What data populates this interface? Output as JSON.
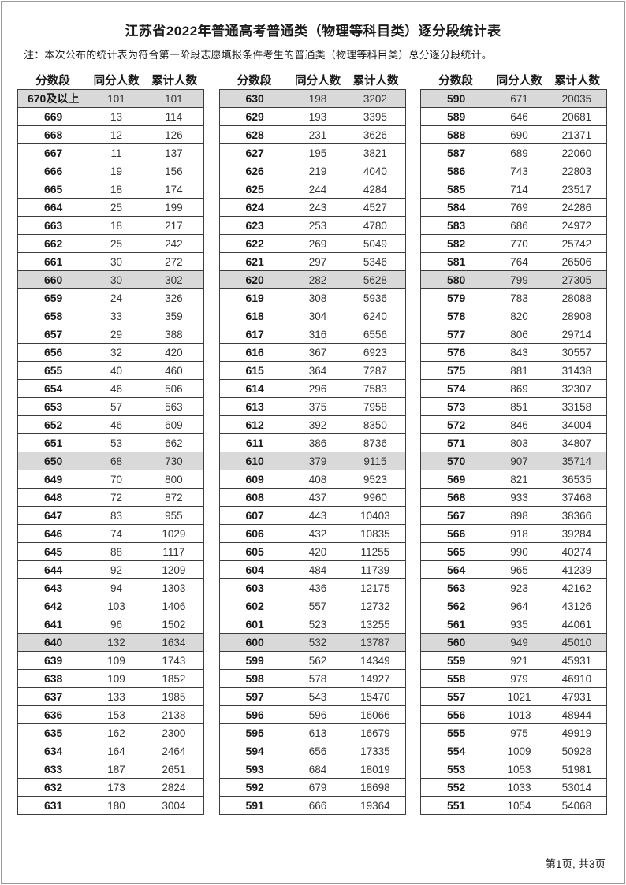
{
  "page": {
    "title": "江苏省2022年普通高考普通类（物理等科目类）逐分段统计表",
    "note": "注：本次公布的统计表为符合第一阶段志愿填报条件考生的普通类（物理等科目类）总分逐分段统计。",
    "footer": "第1页, 共3页"
  },
  "colors": {
    "shaded_row": "#d9d9d9",
    "row_border": "#3d3d3d"
  },
  "tables": {
    "headers": [
      "分数段",
      "同分人数",
      "累计人数"
    ],
    "columns": [
      {
        "rows": [
          [
            "670及以上",
            "101",
            "101"
          ],
          [
            "669",
            "13",
            "114"
          ],
          [
            "668",
            "12",
            "126"
          ],
          [
            "667",
            "11",
            "137"
          ],
          [
            "666",
            "19",
            "156"
          ],
          [
            "665",
            "18",
            "174"
          ],
          [
            "664",
            "25",
            "199"
          ],
          [
            "663",
            "18",
            "217"
          ],
          [
            "662",
            "25",
            "242"
          ],
          [
            "661",
            "30",
            "272"
          ],
          [
            "660",
            "30",
            "302"
          ],
          [
            "659",
            "24",
            "326"
          ],
          [
            "658",
            "33",
            "359"
          ],
          [
            "657",
            "29",
            "388"
          ],
          [
            "656",
            "32",
            "420"
          ],
          [
            "655",
            "40",
            "460"
          ],
          [
            "654",
            "46",
            "506"
          ],
          [
            "653",
            "57",
            "563"
          ],
          [
            "652",
            "46",
            "609"
          ],
          [
            "651",
            "53",
            "662"
          ],
          [
            "650",
            "68",
            "730"
          ],
          [
            "649",
            "70",
            "800"
          ],
          [
            "648",
            "72",
            "872"
          ],
          [
            "647",
            "83",
            "955"
          ],
          [
            "646",
            "74",
            "1029"
          ],
          [
            "645",
            "88",
            "1117"
          ],
          [
            "644",
            "92",
            "1209"
          ],
          [
            "643",
            "94",
            "1303"
          ],
          [
            "642",
            "103",
            "1406"
          ],
          [
            "641",
            "96",
            "1502"
          ],
          [
            "640",
            "132",
            "1634"
          ],
          [
            "639",
            "109",
            "1743"
          ],
          [
            "638",
            "109",
            "1852"
          ],
          [
            "637",
            "133",
            "1985"
          ],
          [
            "636",
            "153",
            "2138"
          ],
          [
            "635",
            "162",
            "2300"
          ],
          [
            "634",
            "164",
            "2464"
          ],
          [
            "633",
            "187",
            "2651"
          ],
          [
            "632",
            "173",
            "2824"
          ],
          [
            "631",
            "180",
            "3004"
          ]
        ]
      },
      {
        "rows": [
          [
            "630",
            "198",
            "3202"
          ],
          [
            "629",
            "193",
            "3395"
          ],
          [
            "628",
            "231",
            "3626"
          ],
          [
            "627",
            "195",
            "3821"
          ],
          [
            "626",
            "219",
            "4040"
          ],
          [
            "625",
            "244",
            "4284"
          ],
          [
            "624",
            "243",
            "4527"
          ],
          [
            "623",
            "253",
            "4780"
          ],
          [
            "622",
            "269",
            "5049"
          ],
          [
            "621",
            "297",
            "5346"
          ],
          [
            "620",
            "282",
            "5628"
          ],
          [
            "619",
            "308",
            "5936"
          ],
          [
            "618",
            "304",
            "6240"
          ],
          [
            "617",
            "316",
            "6556"
          ],
          [
            "616",
            "367",
            "6923"
          ],
          [
            "615",
            "364",
            "7287"
          ],
          [
            "614",
            "296",
            "7583"
          ],
          [
            "613",
            "375",
            "7958"
          ],
          [
            "612",
            "392",
            "8350"
          ],
          [
            "611",
            "386",
            "8736"
          ],
          [
            "610",
            "379",
            "9115"
          ],
          [
            "609",
            "408",
            "9523"
          ],
          [
            "608",
            "437",
            "9960"
          ],
          [
            "607",
            "443",
            "10403"
          ],
          [
            "606",
            "432",
            "10835"
          ],
          [
            "605",
            "420",
            "11255"
          ],
          [
            "604",
            "484",
            "11739"
          ],
          [
            "603",
            "436",
            "12175"
          ],
          [
            "602",
            "557",
            "12732"
          ],
          [
            "601",
            "523",
            "13255"
          ],
          [
            "600",
            "532",
            "13787"
          ],
          [
            "599",
            "562",
            "14349"
          ],
          [
            "598",
            "578",
            "14927"
          ],
          [
            "597",
            "543",
            "15470"
          ],
          [
            "596",
            "596",
            "16066"
          ],
          [
            "595",
            "613",
            "16679"
          ],
          [
            "594",
            "656",
            "17335"
          ],
          [
            "593",
            "684",
            "18019"
          ],
          [
            "592",
            "679",
            "18698"
          ],
          [
            "591",
            "666",
            "19364"
          ]
        ]
      },
      {
        "rows": [
          [
            "590",
            "671",
            "20035"
          ],
          [
            "589",
            "646",
            "20681"
          ],
          [
            "588",
            "690",
            "21371"
          ],
          [
            "587",
            "689",
            "22060"
          ],
          [
            "586",
            "743",
            "22803"
          ],
          [
            "585",
            "714",
            "23517"
          ],
          [
            "584",
            "769",
            "24286"
          ],
          [
            "583",
            "686",
            "24972"
          ],
          [
            "582",
            "770",
            "25742"
          ],
          [
            "581",
            "764",
            "26506"
          ],
          [
            "580",
            "799",
            "27305"
          ],
          [
            "579",
            "783",
            "28088"
          ],
          [
            "578",
            "820",
            "28908"
          ],
          [
            "577",
            "806",
            "29714"
          ],
          [
            "576",
            "843",
            "30557"
          ],
          [
            "575",
            "881",
            "31438"
          ],
          [
            "574",
            "869",
            "32307"
          ],
          [
            "573",
            "851",
            "33158"
          ],
          [
            "572",
            "846",
            "34004"
          ],
          [
            "571",
            "803",
            "34807"
          ],
          [
            "570",
            "907",
            "35714"
          ],
          [
            "569",
            "821",
            "36535"
          ],
          [
            "568",
            "933",
            "37468"
          ],
          [
            "567",
            "898",
            "38366"
          ],
          [
            "566",
            "918",
            "39284"
          ],
          [
            "565",
            "990",
            "40274"
          ],
          [
            "564",
            "965",
            "41239"
          ],
          [
            "563",
            "923",
            "42162"
          ],
          [
            "562",
            "964",
            "43126"
          ],
          [
            "561",
            "935",
            "44061"
          ],
          [
            "560",
            "949",
            "45010"
          ],
          [
            "559",
            "921",
            "45931"
          ],
          [
            "558",
            "979",
            "46910"
          ],
          [
            "557",
            "1021",
            "47931"
          ],
          [
            "556",
            "1013",
            "48944"
          ],
          [
            "555",
            "975",
            "49919"
          ],
          [
            "554",
            "1009",
            "50928"
          ],
          [
            "553",
            "1053",
            "51981"
          ],
          [
            "552",
            "1033",
            "53014"
          ],
          [
            "551",
            "1054",
            "54068"
          ]
        ]
      }
    ]
  }
}
